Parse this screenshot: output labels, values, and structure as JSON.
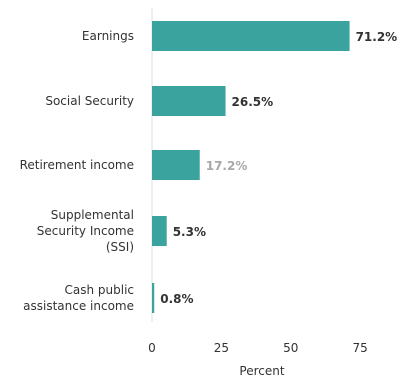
{
  "chart_data": {
    "type": "bar",
    "orientation": "horizontal",
    "categories": [
      [
        "Earnings"
      ],
      [
        "Social Security"
      ],
      [
        "Retirement income"
      ],
      [
        "Supplemental",
        "Security Income",
        "(SSI)"
      ],
      [
        "Cash public",
        "assistance income"
      ]
    ],
    "values": [
      71.2,
      26.5,
      17.2,
      5.3,
      0.8
    ],
    "value_labels": [
      "71.2%",
      "26.5%",
      "17.2%",
      "5.3%",
      "0.8%"
    ],
    "xlabel": "Percent",
    "xlim": [
      0,
      80
    ],
    "xticks": [
      0,
      25,
      50,
      75
    ],
    "xtick_labels": [
      "0",
      "25",
      "50",
      "75"
    ],
    "grid": false,
    "colors": {
      "bar": "#3aa39e",
      "value_label": "#333333",
      "value_label_muted": "#a8a8a8",
      "axis": "#dddddd"
    },
    "muted_label_index": 2
  }
}
